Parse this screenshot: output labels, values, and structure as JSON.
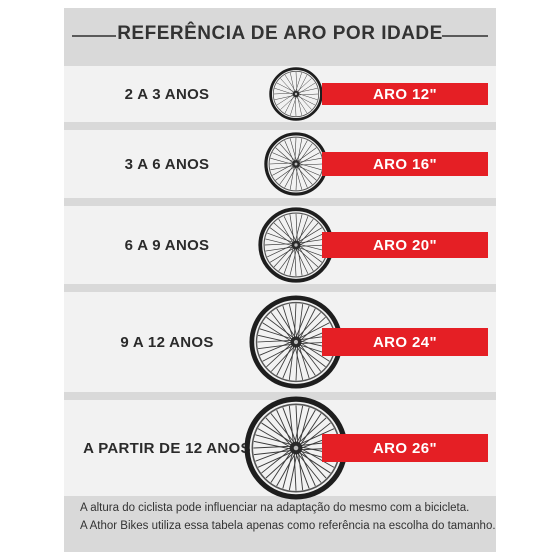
{
  "title": "REFERÊNCIA DE ARO POR IDADE",
  "rows": [
    {
      "age": "2 A 3 ANOS",
      "rim": "ARO 12\""
    },
    {
      "age": "3 A 6 ANOS",
      "rim": "ARO 16\""
    },
    {
      "age": "6 A 9 ANOS",
      "rim": "ARO 20\""
    },
    {
      "age": "9 A 12 ANOS",
      "rim": "ARO 24\""
    },
    {
      "age": "A PARTIR DE 12 ANOS",
      "rim": "ARO 26\""
    }
  ],
  "footnotes": [
    "A altura do ciclista pode influenciar na adaptação do mesmo com a bicicleta.",
    "A Athor Bikes utiliza essa tabela apenas como referência na escolha do tamanho."
  ],
  "colors": {
    "accent": "#e51f25",
    "band": "#f2f2f2",
    "background": "#d9d9d9"
  },
  "icons": [
    "bicycle-wheel-icon"
  ]
}
